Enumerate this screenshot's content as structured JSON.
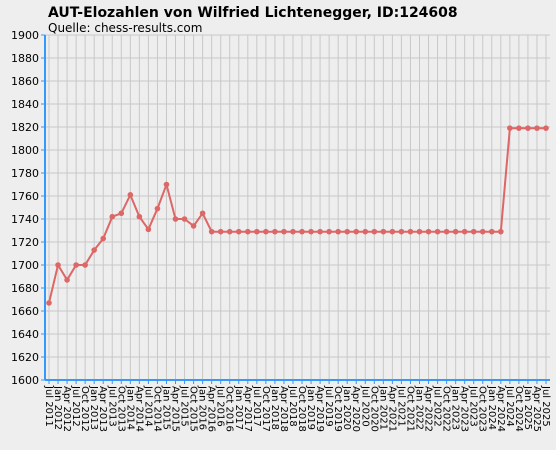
{
  "chart_data": {
    "type": "line",
    "title": "AUT-Elozahlen von Wilfried Lichtenegger, ID:124608",
    "subtitle": "Quelle: chess-results.com",
    "xlabel": "",
    "ylabel": "",
    "ylim": [
      1600,
      1900
    ],
    "yticks": [
      1600,
      1620,
      1640,
      1660,
      1680,
      1700,
      1720,
      1740,
      1760,
      1780,
      1800,
      1820,
      1840,
      1860,
      1880,
      1900
    ],
    "grid": true,
    "x": [
      "Jul 2011",
      "Jan 2012",
      "Apr 2012",
      "Jul 2012",
      "Oct 2012",
      "Jan 2013",
      "Apr 2013",
      "Jul 2013",
      "Oct 2013",
      "Jan 2014",
      "Apr 2014",
      "Jul 2014",
      "Oct 2014",
      "Jan 2015",
      "Apr 2015",
      "Jul 2015",
      "Oct 2015",
      "Jan 2016",
      "Apr 2016",
      "Jul 2016",
      "Oct 2016",
      "Jan 2017",
      "Apr 2017",
      "Jul 2017",
      "Oct 2017",
      "Jan 2018",
      "Apr 2018",
      "Jul 2018",
      "Oct 2018",
      "Jan 2019",
      "Apr 2019",
      "Jul 2019",
      "Oct 2019",
      "Jan 2020",
      "Apr 2020",
      "Jul 2020",
      "Oct 2020",
      "Jan 2021",
      "Apr 2021",
      "Jul 2021",
      "Oct 2021",
      "Jan 2022",
      "Apr 2022",
      "Jul 2022",
      "Oct 2022",
      "Jan 2023",
      "Apr 2023",
      "Jul 2023",
      "Oct 2023",
      "Jan 2024",
      "Apr 2024",
      "Jul 2024",
      "Oct 2024",
      "Jan 2025",
      "Apr 2025",
      "Jul 2025"
    ],
    "series": [
      {
        "color": "#dd6666",
        "values": [
          1667,
          1700,
          1687,
          1700,
          1700,
          1713,
          1723,
          1742,
          1745,
          1761,
          1742,
          1731,
          1749,
          1770,
          1740,
          1740,
          1734,
          1745,
          1729,
          1729,
          1729,
          1729,
          1729,
          1729,
          1729,
          1729,
          1729,
          1729,
          1729,
          1729,
          1729,
          1729,
          1729,
          1729,
          1729,
          1729,
          1729,
          1729,
          1729,
          1729,
          1729,
          1729,
          1729,
          1729,
          1729,
          1729,
          1729,
          1729,
          1729,
          1729,
          1729,
          1819,
          1819,
          1819,
          1819,
          1819
        ]
      }
    ],
    "colors": {
      "background": "#eeeeee",
      "grid": "#c8c8c8",
      "axis": "#3399ff",
      "line": "#dd6666",
      "text": "#000000"
    }
  }
}
